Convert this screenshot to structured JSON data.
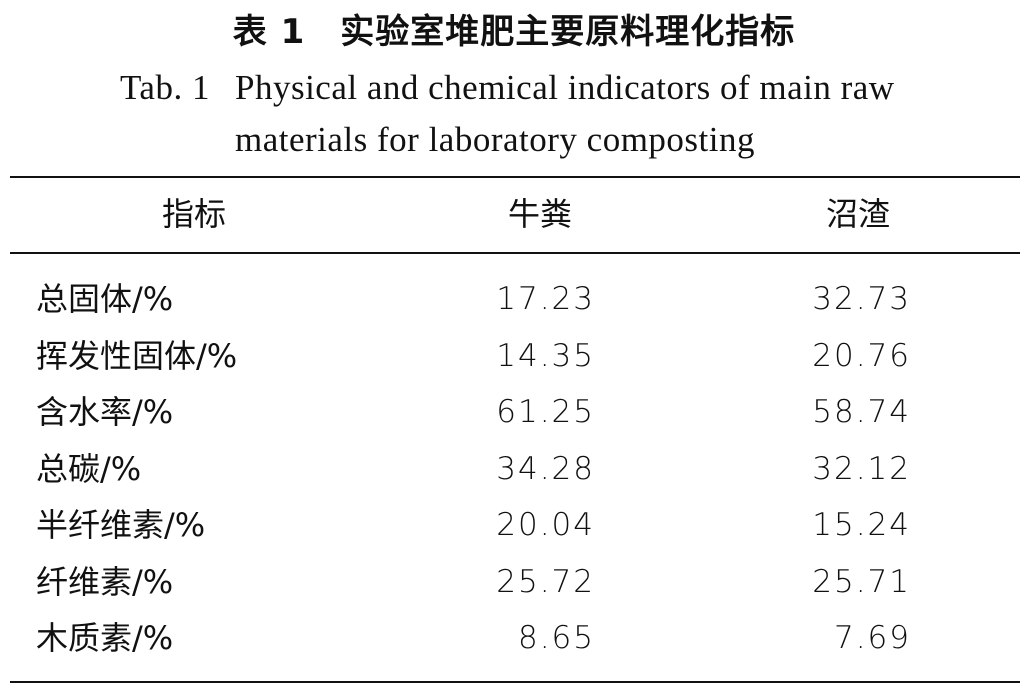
{
  "title_cn": "表 1　实验室堆肥主要原料理化指标",
  "title_en": {
    "tab_label": "Tab. 1",
    "line1": "Physical and chemical indicators of main raw",
    "line2": "materials for laboratory composting"
  },
  "table": {
    "headers": [
      "指标",
      "牛粪",
      "沼渣"
    ],
    "rows": [
      {
        "label": "总固体/%",
        "v1": "17.23",
        "v2": "32.73"
      },
      {
        "label": "挥发性固体/%",
        "v1": "14.35",
        "v2": "20.76"
      },
      {
        "label": "含水率/%",
        "v1": "61.25",
        "v2": "58.74"
      },
      {
        "label": "总碳/%",
        "v1": "34.28",
        "v2": "32.12"
      },
      {
        "label": "半纤维素/%",
        "v1": "20.04",
        "v2": "15.24"
      },
      {
        "label": "纤维素/%",
        "v1": "25.72",
        "v2": "25.71"
      },
      {
        "label": "木质素/%",
        "v1": "8.65",
        "v2": "7.69"
      }
    ]
  }
}
